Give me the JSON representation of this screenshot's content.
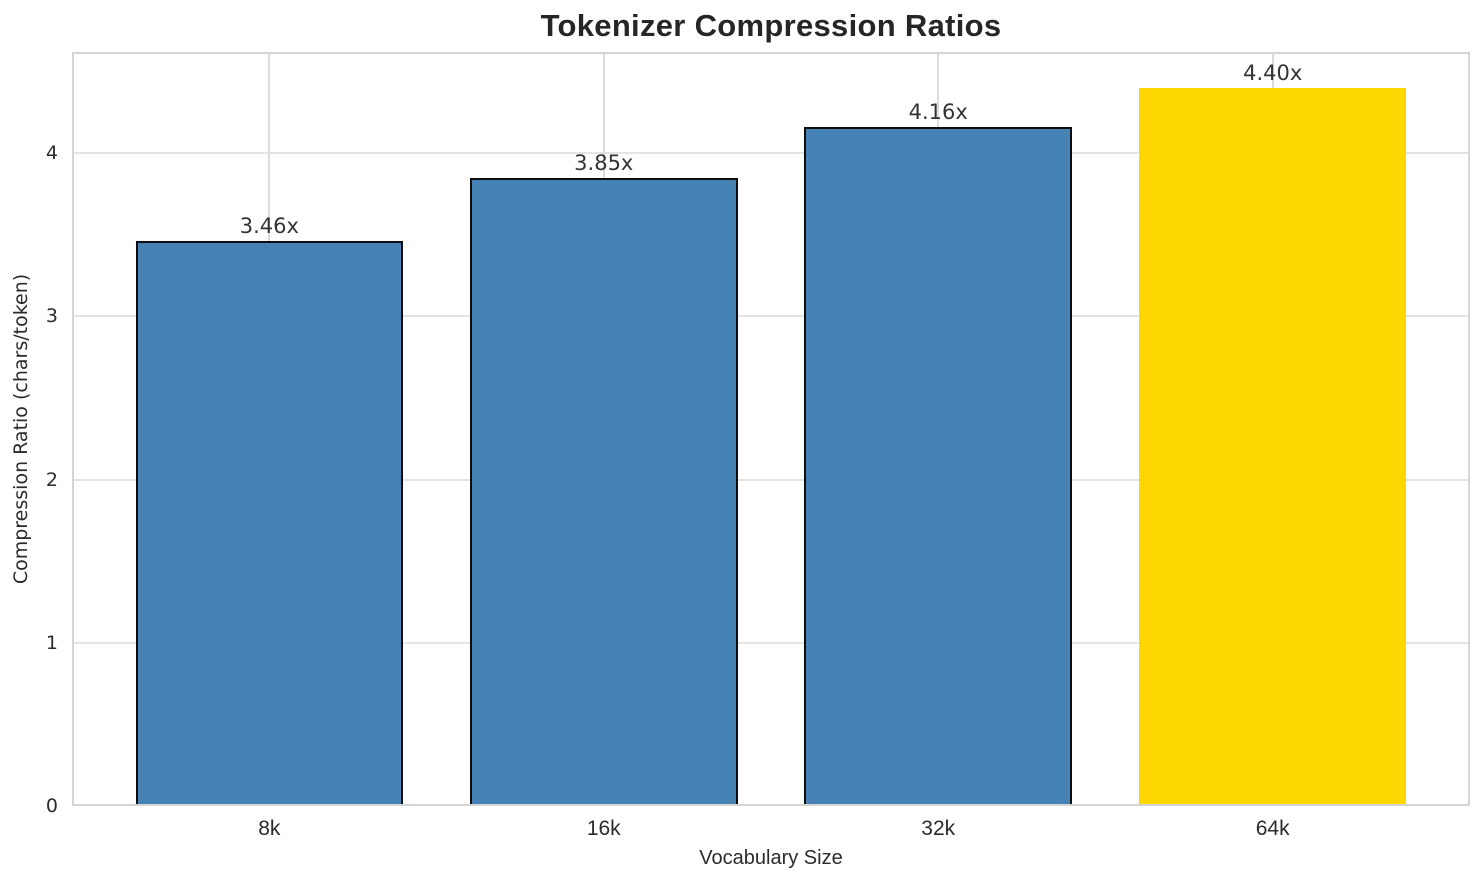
{
  "chart_data": {
    "type": "bar",
    "title": "Tokenizer Compression Ratios",
    "xlabel": "Vocabulary Size",
    "ylabel": "Compression Ratio (chars/token)",
    "categories": [
      "8k",
      "16k",
      "32k",
      "64k"
    ],
    "values": [
      3.46,
      3.85,
      4.16,
      4.4
    ],
    "bar_labels": [
      "3.46x",
      "3.85x",
      "4.16x",
      "4.40x"
    ],
    "bar_colors": [
      "#4682B4",
      "#4682B4",
      "#4682B4",
      "#FFD700"
    ],
    "bar_edge_color": "#0d0d0d",
    "bar_edge_widths": [
      2.5,
      2.5,
      2.5,
      0
    ],
    "highlight_index": 3,
    "yticks": [
      0,
      1,
      2,
      3,
      4
    ],
    "ylim": [
      0,
      4.62
    ],
    "xlim": [
      -0.59,
      3.59
    ],
    "bar_width_units": 0.8,
    "grid": true,
    "legend_position": "none",
    "colors": {
      "title_text": "#262626",
      "tick_text": "#2b2b2b",
      "value_text": "#333333",
      "grid_h": "#e4e4e4",
      "grid_v": "#dcdcdc",
      "spine": "#d5d5d5",
      "background": "#ffffff"
    }
  }
}
